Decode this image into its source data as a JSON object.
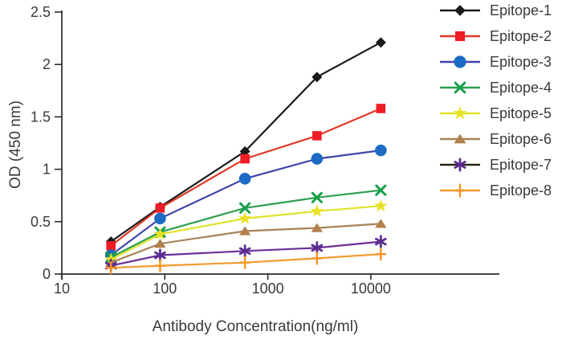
{
  "chart_data": {
    "type": "line",
    "title": "",
    "xlabel": "Antibody Concentration(ng/ml)",
    "ylabel": "OD (450 nm)",
    "x_scale": "log",
    "x_ticks": [
      10,
      100,
      1000,
      10000
    ],
    "x_tick_labels": [
      "10",
      "100",
      "1000",
      "10000"
    ],
    "y_ticks": [
      0,
      0.5,
      1,
      1.5,
      2,
      2.5
    ],
    "y_tick_labels": [
      "0",
      "0.5",
      "1",
      "1.5",
      "2",
      "2.5"
    ],
    "xlim": [
      10,
      180000
    ],
    "ylim": [
      0,
      2.5
    ],
    "grid": false,
    "legend_position": "right",
    "x": [
      30,
      90,
      600,
      3000,
      12500
    ],
    "series": [
      {
        "name": "Epitope-1",
        "marker": "diamond",
        "color": "#1a1a1a",
        "marker_color": "#1a1a1a",
        "values": [
          0.31,
          0.64,
          1.17,
          1.88,
          2.21
        ]
      },
      {
        "name": "Epitope-2",
        "marker": "square",
        "color": "#e23726",
        "marker_color": "#ee1c25",
        "values": [
          0.27,
          0.63,
          1.1,
          1.32,
          1.58
        ]
      },
      {
        "name": "Epitope-3",
        "marker": "circle",
        "color": "#3e46aa",
        "marker_color": "#1d6ac4",
        "values": [
          0.18,
          0.53,
          0.91,
          1.1,
          1.18
        ]
      },
      {
        "name": "Epitope-4",
        "marker": "xmark",
        "color": "#2e9e4f",
        "marker_color": "#16a14b",
        "values": [
          0.16,
          0.4,
          0.63,
          0.73,
          0.8
        ]
      },
      {
        "name": "Epitope-5",
        "marker": "star",
        "color": "#dfe32d",
        "marker_color": "#e8e123",
        "values": [
          0.14,
          0.38,
          0.53,
          0.6,
          0.65
        ]
      },
      {
        "name": "Epitope-6",
        "marker": "triangle",
        "color": "#a9825a",
        "marker_color": "#b0804d",
        "values": [
          0.11,
          0.29,
          0.41,
          0.44,
          0.48
        ]
      },
      {
        "name": "Epitope-7",
        "marker": "asterisk",
        "color": "#6b2e99",
        "marker_color": "#5b2d91",
        "legend_line_color": "#2e2318",
        "values": [
          0.08,
          0.18,
          0.22,
          0.25,
          0.31
        ]
      },
      {
        "name": "Epitope-8",
        "marker": "plus",
        "color": "#f2992e",
        "marker_color": "#f7941d",
        "values": [
          0.06,
          0.08,
          0.11,
          0.15,
          0.19
        ]
      }
    ],
    "colors": {
      "axis": "#2b2b2b",
      "text": "#3a3a3a",
      "background": "#ffffff"
    }
  }
}
